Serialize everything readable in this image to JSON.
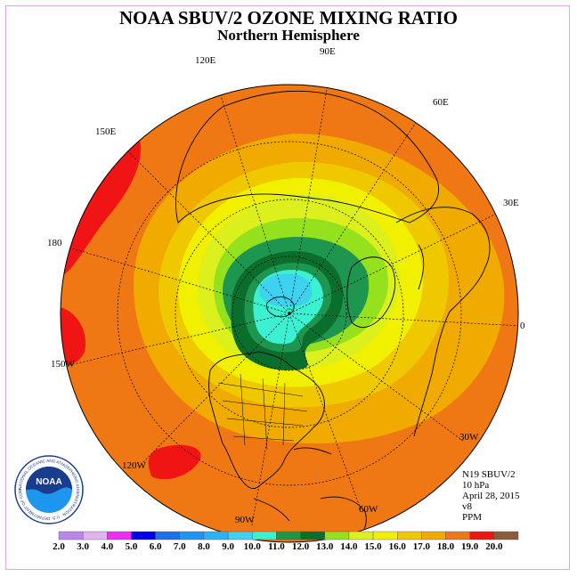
{
  "header": {
    "title": "NOAA SBUV/2 OZONE MIXING RATIO",
    "subtitle": "Northern Hemisphere"
  },
  "longitudes": {
    "e120": "120E",
    "e90": "90E",
    "e60": "60E",
    "e150": "150E",
    "e30": "30E",
    "d180": "180",
    "d0": "0",
    "w150": "150W",
    "w30": "30W",
    "w120": "120W",
    "w60": "60W",
    "w90": "90W"
  },
  "info": {
    "satellite": "N19 SBUV/2",
    "level": "10 hPa",
    "date": "April 28, 2015",
    "version": "v8",
    "units": "PPM"
  },
  "colorbar": {
    "labels": [
      "2.0",
      "3.0",
      "4.0",
      "5.0",
      "6.0",
      "7.0",
      "8.0",
      "9.0",
      "10.0",
      "11.0",
      "12.0",
      "13.0",
      "14.0",
      "15.0",
      "16.0",
      "17.0",
      "18.0",
      "19.0",
      "20.0"
    ],
    "colors": [
      "#b987e8",
      "#e1b4ef",
      "#f02cf0",
      "#0000f0",
      "#1e6ef0",
      "#1e96f0",
      "#28b4f0",
      "#3cd2f0",
      "#3cf0d2",
      "#1e9650",
      "#0a6e2d",
      "#96e11e",
      "#dcf01e",
      "#f0f000",
      "#f0c800",
      "#f0aa00",
      "#f07814",
      "#f01414",
      "#8c5a3c"
    ]
  },
  "logo": {
    "name": "NOAA",
    "ring_text": "NATIONAL OCEANIC AND ATMOSPHERIC ADMINISTRATION · U.S. DEPARTMENT OF COMMERCE"
  }
}
